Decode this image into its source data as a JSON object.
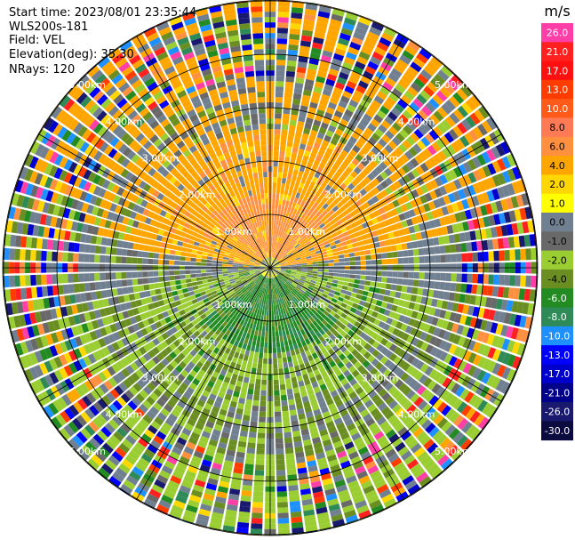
{
  "info": {
    "start_time": "Start time: 2023/08/01 23:35:44",
    "instrument": "WLS200s-181",
    "field": "Field: VEL",
    "elevation": "Elevation(deg): 35.30",
    "nrays": "NRays: 120"
  },
  "chart_data": {
    "type": "heatmap",
    "projection": "polar-ppi",
    "field": "VEL",
    "units": "m/s",
    "n_rays": 120,
    "max_range_km": 5.0,
    "range_ring_labels": [
      "1.00km",
      "2.00km",
      "3.00km",
      "4.00km",
      "5.00km"
    ],
    "colorbar": {
      "title": "m/s",
      "tick_labels": [
        "26.0",
        "21.0",
        "17.0",
        "13.0",
        "10.0",
        "8.0",
        "6.0",
        "4.0",
        "2.0",
        "1.0",
        "0.0",
        "-1.0",
        "-2.0",
        "-4.0",
        "-6.0",
        "-8.0",
        "-10.0",
        "-13.0",
        "-17.0",
        "-21.0",
        "-26.0",
        "-30.0"
      ],
      "colors": [
        "#ff3ea8",
        "#ff2020",
        "#ff1010",
        "#ff3c00",
        "#ff5a1a",
        "#ff7a55",
        "#ff9040",
        "#ffa500",
        "#ffd700",
        "#ffff00",
        "#708090",
        "#696969",
        "#9acd32",
        "#6b8e23",
        "#228b22",
        "#2e8b57",
        "#1e90ff",
        "#0000ff",
        "#0000cd",
        "#00008b",
        "#191970",
        "#0b0b40"
      ]
    }
  }
}
